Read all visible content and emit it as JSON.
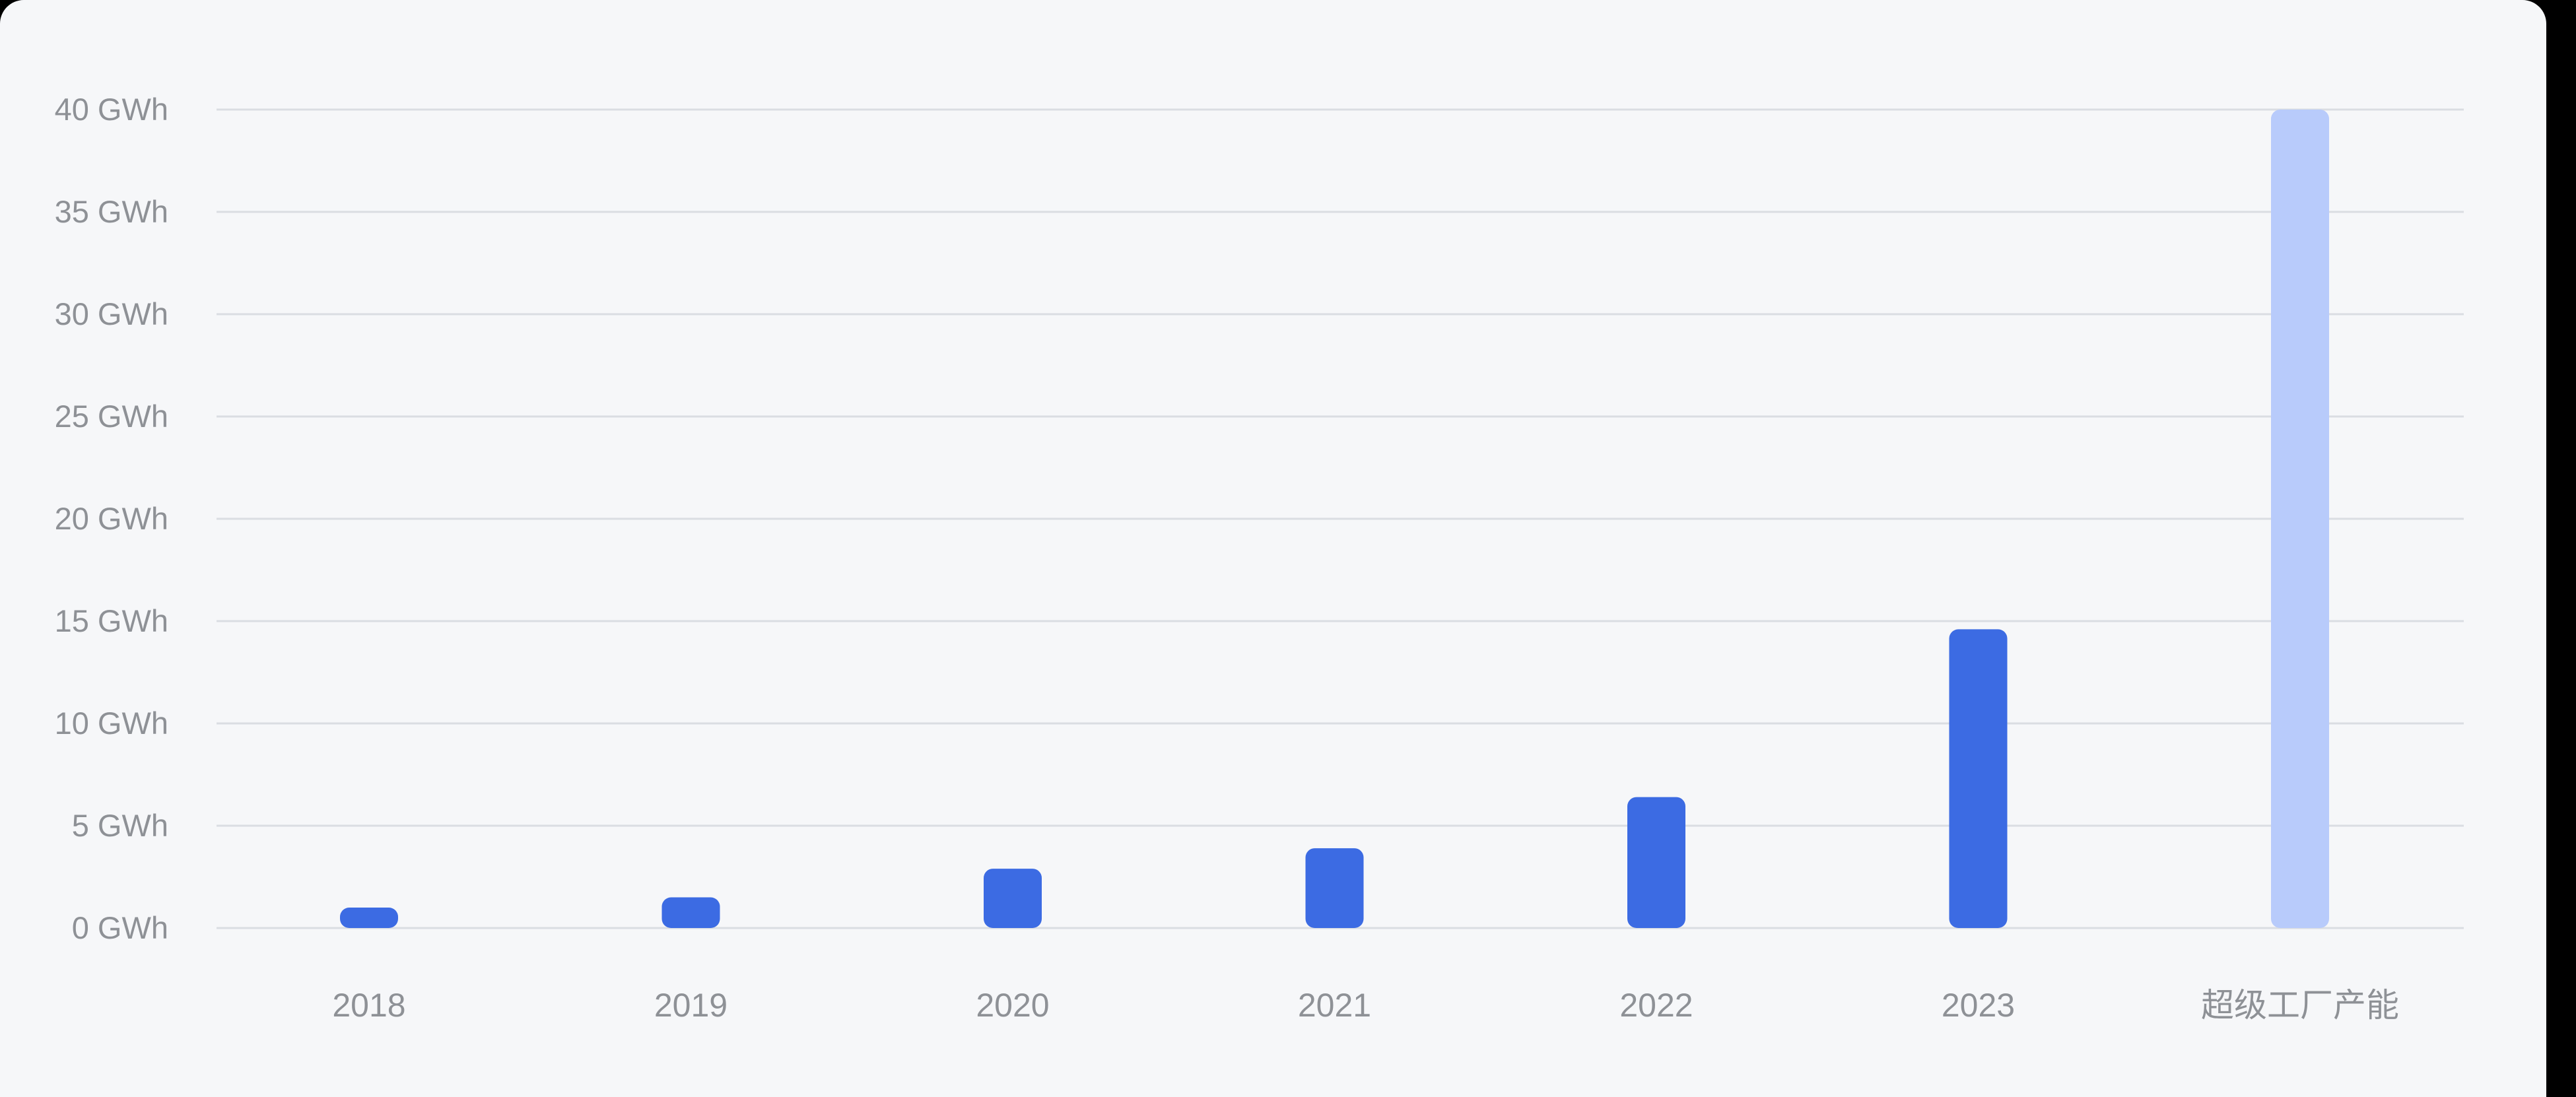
{
  "chart_data": {
    "type": "bar",
    "title": "",
    "xlabel": "",
    "ylabel": "",
    "unit": "GWh",
    "ylim": [
      0,
      40
    ],
    "yticks": [
      0,
      5,
      10,
      15,
      20,
      25,
      30,
      35,
      40
    ],
    "ytick_labels": [
      "0 GWh",
      "5 GWh",
      "10 GWh",
      "15 GWh",
      "20 GWh",
      "25 GWh",
      "30 GWh",
      "35 GWh",
      "40 GWh"
    ],
    "categories": [
      "2018",
      "2019",
      "2020",
      "2021",
      "2022",
      "2023",
      "超级工厂产能"
    ],
    "values": [
      1,
      1.5,
      2.9,
      3.9,
      6.4,
      14.6,
      40
    ],
    "bar_colors": [
      "#3c6be3",
      "#3c6be3",
      "#3c6be3",
      "#3c6be3",
      "#3c6be3",
      "#3c6be3",
      "#b8cbfb"
    ],
    "grid": true,
    "legend": "none"
  }
}
